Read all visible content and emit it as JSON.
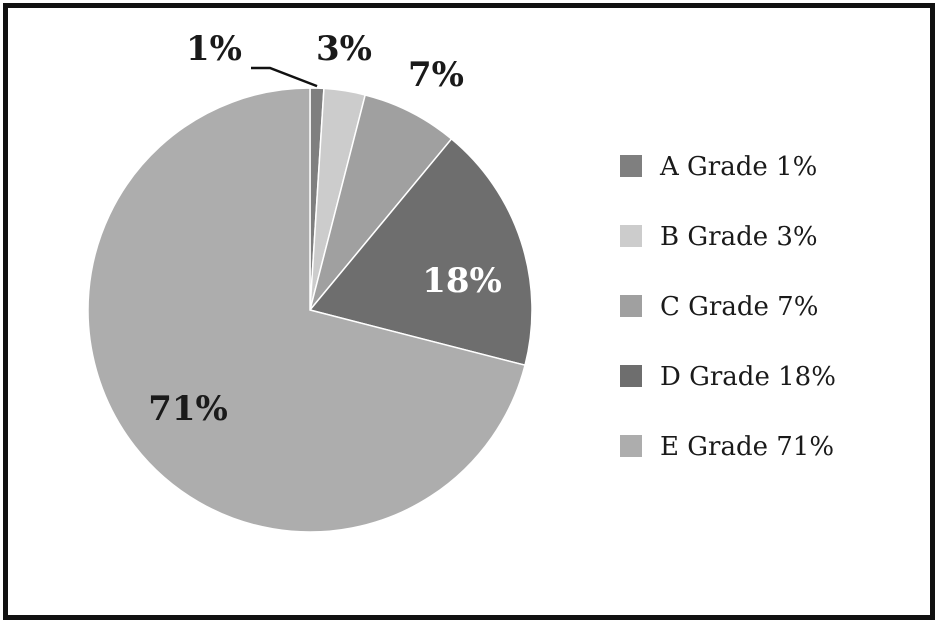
{
  "chart_data": {
    "type": "pie",
    "categories": [
      "A Grade 1%",
      "B Grade 3%",
      "C Grade 7%",
      "D Grade 18%",
      "E Grade 71%"
    ],
    "values": [
      1,
      3,
      7,
      18,
      71
    ],
    "slice_labels": [
      "1%",
      "3%",
      "7%",
      "18%",
      "71%"
    ],
    "colors": [
      "#7f7f7f",
      "#cccccc",
      "#a0a0a0",
      "#6e6e6e",
      "#adadad"
    ],
    "label_colors": [
      "#1a1a1a",
      "#1a1a1a",
      "#1a1a1a",
      "#ffffff",
      "#1a1a1a"
    ],
    "legend_placement": "right",
    "title": ""
  }
}
